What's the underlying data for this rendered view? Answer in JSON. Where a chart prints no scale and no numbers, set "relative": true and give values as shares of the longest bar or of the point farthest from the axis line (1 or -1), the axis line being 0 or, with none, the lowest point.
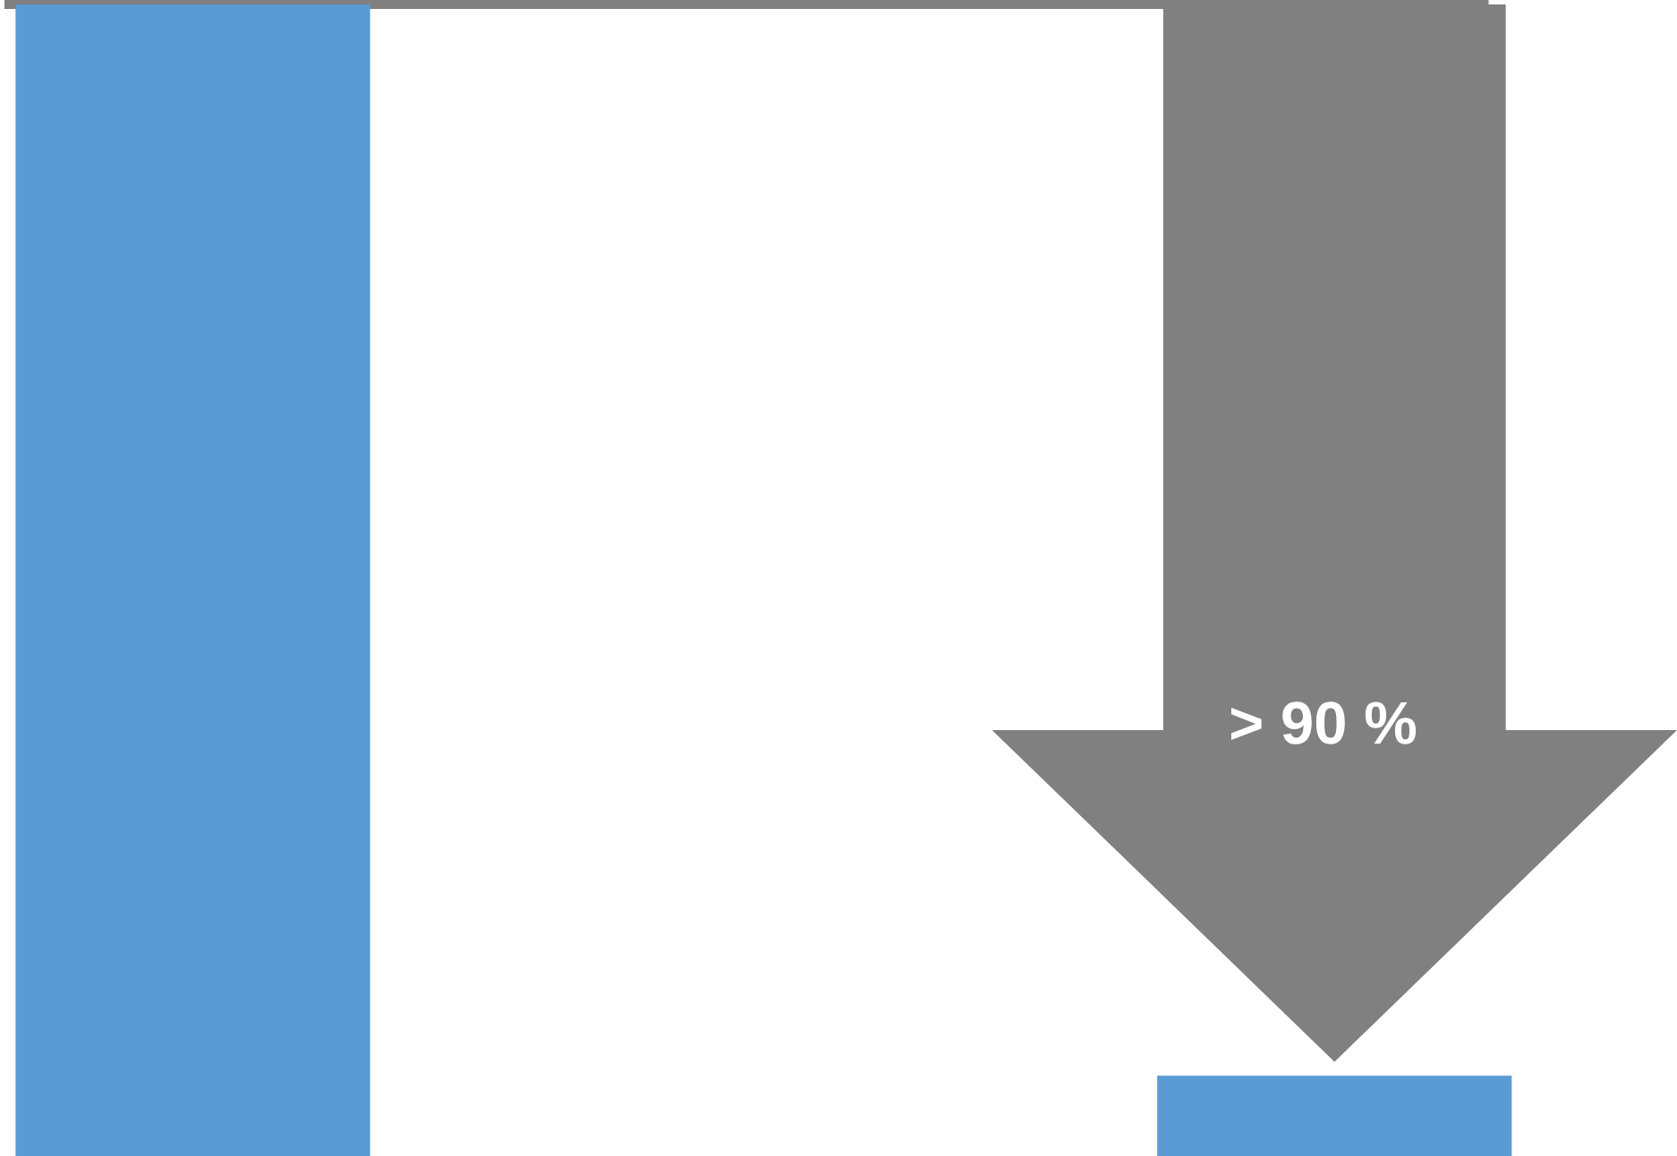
{
  "chart_data": {
    "type": "bar",
    "relative": true,
    "categories": [
      null,
      null
    ],
    "values": [
      1,
      0.07
    ],
    "color": "#5b9bd5",
    "ref_lines": [
      {
        "axis": "y",
        "value": 1,
        "color": "#808080"
      }
    ],
    "annotations": [
      "> 90 %"
    ]
  }
}
